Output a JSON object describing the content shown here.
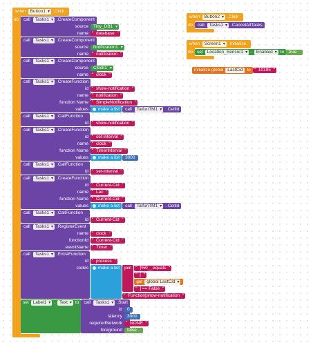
{
  "events": [
    {
      "when": "when",
      "component": "Button1",
      "event": ".Click",
      "do": "do",
      "body": [
        {
          "call": "call",
          "component": "Tasks1",
          "method": ".CreateComponent",
          "args": [
            {
              "label": "source",
              "value": {
                "component": "Tiny_DB1"
              }
            },
            {
              "label": "name",
              "value": {
                "text": "database"
              }
            }
          ]
        },
        {
          "call": "call",
          "component": "Tasks1",
          "method": ".CreateComponent",
          "args": [
            {
              "label": "source",
              "value": {
                "component": "Notification1"
              }
            },
            {
              "label": "name",
              "value": {
                "text": "notification"
              }
            }
          ]
        },
        {
          "call": "call",
          "component": "Tasks1",
          "method": ".CreateComponent",
          "args": [
            {
              "label": "source",
              "value": {
                "component": "Clock1"
              }
            },
            {
              "label": "name",
              "value": {
                "text": "clock"
              }
            }
          ]
        },
        {
          "call": "call",
          "component": "Tasks1",
          "method": ".CreateFunction",
          "args": [
            {
              "label": "id",
              "value": {
                "text": "show-notification"
              }
            },
            {
              "label": "name",
              "value": {
                "text": "notification"
              }
            },
            {
              "label": "function Name",
              "value": {
                "text": "SimpleNotification"
              }
            },
            {
              "label": "values",
              "value": {
                "make": "make a list",
                "items": [
                  {
                    "call": "call",
                    "component": "TaifunTM1",
                    "method": ". CellId"
                  }
                ]
              }
            }
          ]
        },
        {
          "call": "call",
          "component": "Tasks1",
          "method": ".CallFunction",
          "args": [
            {
              "label": "id",
              "value": {
                "text": "show-notification"
              }
            }
          ]
        },
        {
          "call": "call",
          "component": "Tasks1",
          "method": ".CreateFunction",
          "args": [
            {
              "label": "id",
              "value": {
                "text": "set-interval"
              }
            },
            {
              "label": "name",
              "value": {
                "text": "clock"
              }
            },
            {
              "label": "function Name",
              "value": {
                "text": "TimerInterval"
              }
            },
            {
              "label": "values",
              "value": {
                "make": "make a list",
                "items": [
                  {
                    "number": 3000
                  }
                ]
              }
            }
          ]
        },
        {
          "call": "call",
          "component": "Tasks1",
          "method": ".CallFunction",
          "args": [
            {
              "label": "id",
              "value": {
                "text": "set-interval"
              }
            }
          ]
        },
        {
          "call": "call",
          "component": "Tasks1",
          "method": ".CreateFunction",
          "args": [
            {
              "label": "id",
              "value": {
                "text": "Current-Cid"
              }
            },
            {
              "label": "name",
              "value": {
                "text": "Lac"
              }
            },
            {
              "label": "function Name",
              "value": {
                "text": "Current-Cid"
              }
            },
            {
              "label": "values",
              "value": {
                "make": "make a list",
                "items": [
                  {
                    "call": "call",
                    "component": "TaifunTM1",
                    "method": ". CellId"
                  }
                ]
              }
            }
          ]
        },
        {
          "call": "call",
          "component": "Tasks1",
          "method": ".CallFunction",
          "args": [
            {
              "label": "id",
              "value": {
                "text": "Current-Cid"
              }
            }
          ]
        },
        {
          "call": "call",
          "component": "Tasks1",
          "method": ".RegisterEvent",
          "args": [
            {
              "label": "name",
              "value": {
                "text": "clock"
              }
            },
            {
              "label": "functionId",
              "value": {
                "text": "Current-Cid"
              }
            },
            {
              "label": "eventName",
              "value": {
                "text": "Timer"
              }
            }
          ]
        },
        {
          "call": "call",
          "component": "Tasks1",
          "method": ".ExtraFunction",
          "args": [
            {
              "label": "id",
              "value": {
                "text": "process"
              }
            },
            {
              "label": "codes",
              "value": {
                "make": "make a list",
                "items": [
                  {
                    "join": "join",
                    "items": [
                      {
                        "text": "{%0__equals"
                      },
                      {
                        "text": "["
                      },
                      {
                        "get": "get",
                        "variable": "global LastCid"
                      },
                      {
                        "text": "] == False"
                      }
                    ]
                  },
                  {
                    "text": "Function|show-notification"
                  }
                ]
              }
            }
          ]
        },
        {
          "set": "set",
          "component": "Label1",
          "dot": ".",
          "property": "Text",
          "to": "to",
          "value": {
            "call": "call",
            "component": "Tasks1",
            "method": ".Start",
            "args": [
              {
                "label": "id",
                "value": {
                  "number": 0
                }
              },
              {
                "label": "latency",
                "value": {
                  "number": 3000
                }
              },
              {
                "label": "requiredNetwork",
                "value": {
                  "text": "NONE"
                }
              },
              {
                "label": "foreground",
                "value": {
                  "boolean": "false"
                }
              }
            ]
          }
        }
      ]
    },
    {
      "when": "when",
      "component": "Button2",
      "event": ".Click",
      "do": "do",
      "body": [
        {
          "call": "call",
          "component": "Tasks1",
          "method": ".CancelAllTasks",
          "args": []
        }
      ]
    },
    {
      "when": "when",
      "component": "Screen1",
      "event": ".Initialize",
      "do": "do",
      "body": [
        {
          "set": "set",
          "component": "Location_Sensor1",
          "dot": ".",
          "property": "Enabled",
          "to": "to",
          "value": {
            "boolean": "true"
          }
        }
      ]
    }
  ],
  "globals": [
    {
      "initialize": "initialize global",
      "name": "LastCid",
      "to": "to",
      "value": {
        "text": "10195"
      }
    }
  ]
}
